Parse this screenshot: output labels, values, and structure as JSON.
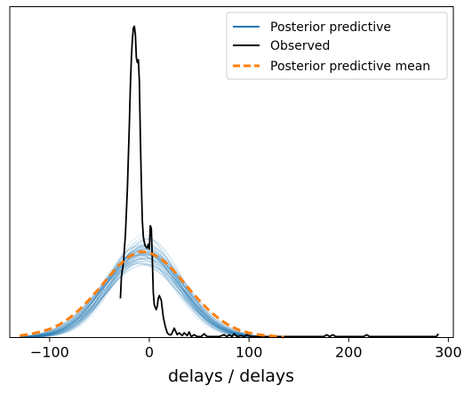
{
  "chart_data": {
    "type": "line",
    "xlabel": "delays / delays",
    "xlim": [
      -140,
      305
    ],
    "ylim": [
      0,
      0.0355
    ],
    "y_ticks_visible": false,
    "x_ticks": [
      -100,
      0,
      100,
      200,
      300
    ],
    "x_tick_labels": [
      "−100",
      "0",
      "100",
      "200",
      "300"
    ],
    "legend": {
      "placement": "top-right",
      "entries": [
        {
          "label": "Posterior predictive",
          "color": "#1f77b4",
          "style": "solid"
        },
        {
          "label": "Observed",
          "color": "#000000",
          "style": "solid"
        },
        {
          "label": "Posterior predictive mean",
          "color": "#ff7f0e",
          "style": "dashed"
        }
      ]
    },
    "posterior_predictive": {
      "name": "Posterior predictive",
      "color": "#1f77b4",
      "n_draws": 60,
      "x_range": [
        -130,
        140
      ],
      "mean_center": -6,
      "mean_sd": 37,
      "peak_density": 0.0092,
      "center_spread": 6,
      "sd_spread": 4
    },
    "posterior_predictive_mean": {
      "name": "Posterior predictive mean",
      "color": "#ff7f0e",
      "x": [
        -130,
        -120,
        -110,
        -100,
        -90,
        -80,
        -70,
        -60,
        -50,
        -40,
        -30,
        -20,
        -10,
        -5,
        0,
        10,
        20,
        30,
        40,
        50,
        60,
        70,
        80,
        90,
        100,
        110,
        120,
        135
      ],
      "y": [
        0.0002,
        0.00035,
        0.0006,
        0.0009,
        0.0014,
        0.0021,
        0.003,
        0.0041,
        0.0053,
        0.0066,
        0.0078,
        0.0087,
        0.0092,
        0.0092,
        0.0091,
        0.0086,
        0.0077,
        0.0065,
        0.0052,
        0.004,
        0.0029,
        0.002,
        0.0013,
        0.0008,
        0.0005,
        0.0003,
        0.0002,
        5e-05
      ]
    },
    "observed": {
      "name": "Observed",
      "color": "#000000",
      "x": [
        -29,
        -28,
        -26,
        -24,
        -22,
        -20,
        -19,
        -18,
        -17,
        -16,
        -15,
        -14,
        -13,
        -12,
        -11,
        -10,
        -9,
        -8,
        -7,
        -6,
        -5,
        -4,
        -3,
        -2,
        -1,
        0,
        1,
        2,
        3,
        4,
        5,
        6,
        7,
        8,
        9,
        10,
        12,
        14,
        16,
        18,
        20,
        22,
        25,
        28,
        30,
        33,
        35,
        38,
        40,
        42,
        45,
        48,
        52,
        55,
        58,
        62,
        70,
        75,
        78,
        80,
        83,
        85,
        88,
        92,
        95,
        98,
        102,
        150,
        175,
        178,
        181,
        184,
        187,
        190,
        215,
        218,
        221,
        224,
        250,
        285,
        288,
        290
      ],
      "y": [
        0.0042,
        0.0065,
        0.008,
        0.011,
        0.016,
        0.023,
        0.027,
        0.03,
        0.032,
        0.0332,
        0.0334,
        0.0325,
        0.03,
        0.0295,
        0.0298,
        0.0275,
        0.0215,
        0.0165,
        0.0125,
        0.0108,
        0.0102,
        0.0098,
        0.0097,
        0.0096,
        0.01,
        0.0095,
        0.012,
        0.0117,
        0.0085,
        0.0048,
        0.0035,
        0.0032,
        0.003,
        0.0034,
        0.0042,
        0.0045,
        0.004,
        0.0022,
        0.0012,
        0.0005,
        0.0003,
        0.0003,
        0.001,
        0.0003,
        0.0005,
        0.0002,
        0.0005,
        0.0002,
        0.0006,
        0.0001,
        0.0003,
        0.0001,
        0.0001,
        0.0004,
        0.0001,
        0.0001,
        0.0001,
        0.0003,
        0.0001,
        0.0003,
        0.0001,
        0.0004,
        0.0001,
        0.0002,
        0.0001,
        0.0003,
        0.0001,
        0.0001,
        0.0001,
        0.0003,
        0.0001,
        0.0003,
        0.0001,
        0.0001,
        0.0001,
        0.0003,
        0.0001,
        0.0001,
        0.0001,
        0.0001,
        0.0001,
        0.0004
      ]
    }
  }
}
